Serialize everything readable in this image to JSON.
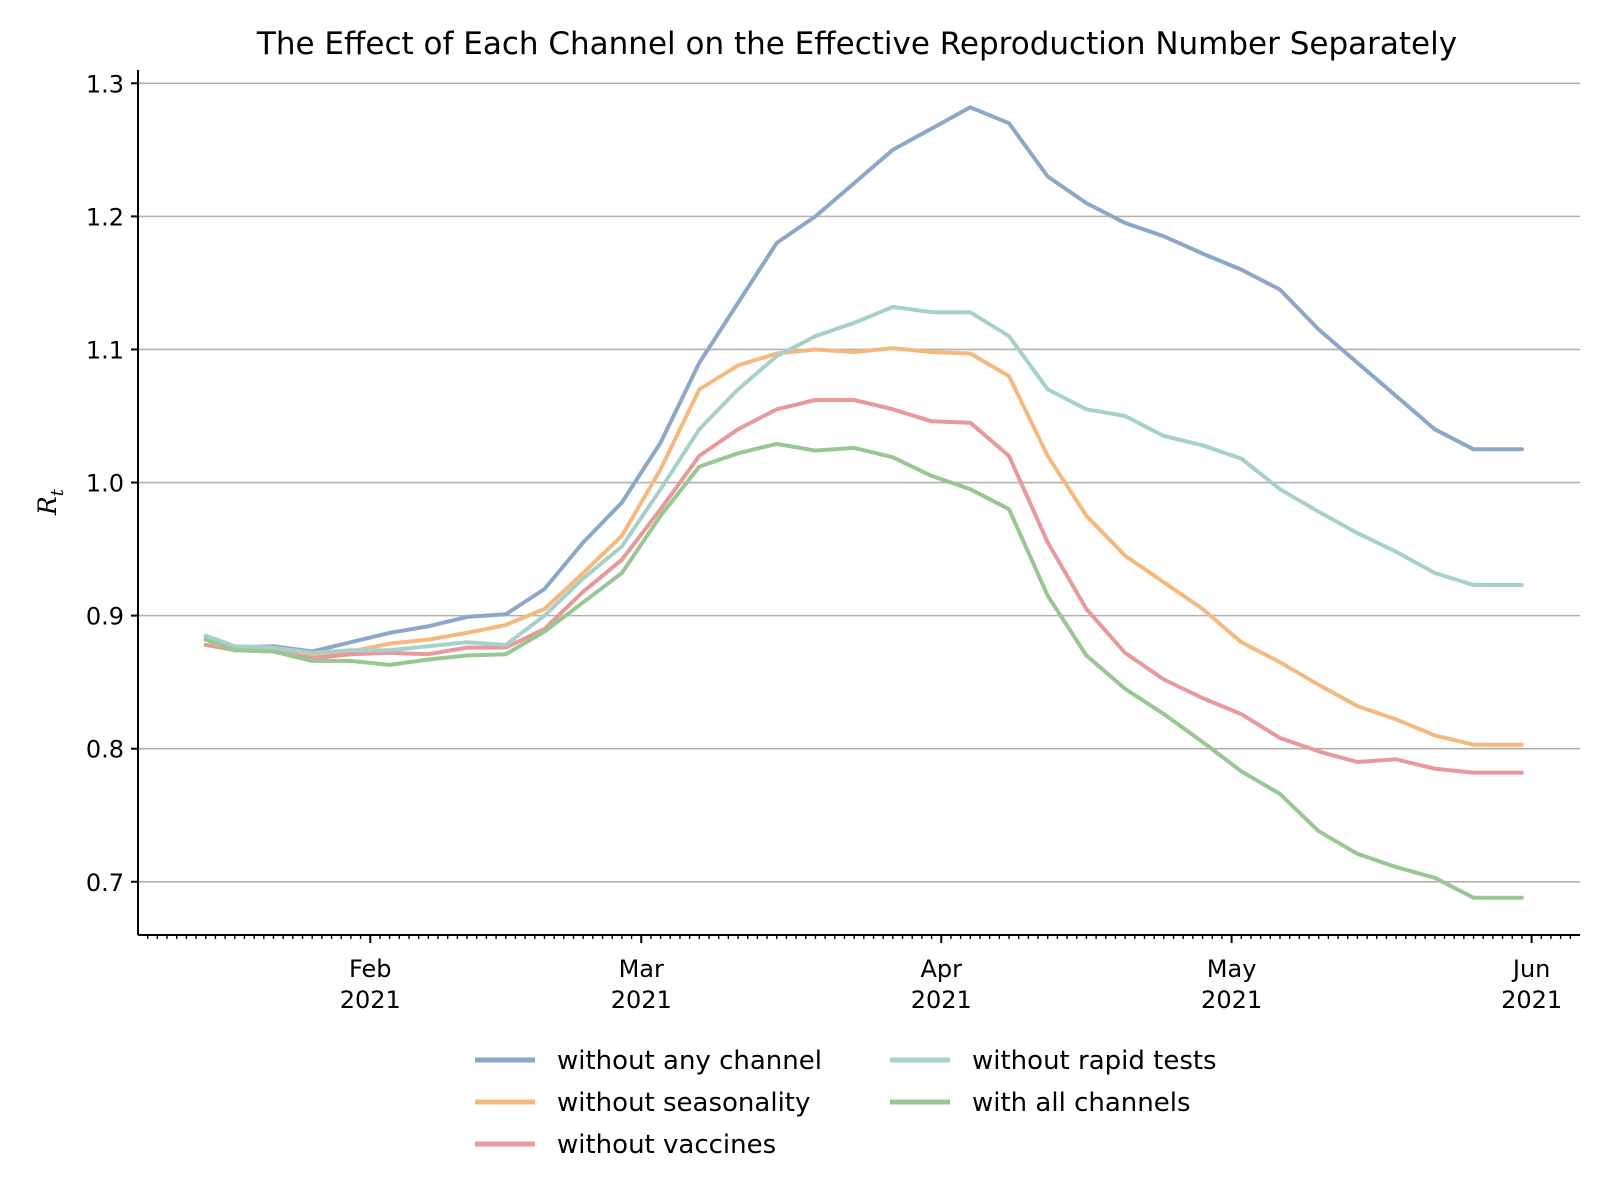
{
  "chart_data": {
    "type": "line",
    "title": "The Effect of Each Channel on the Effective Reproduction Number Separately",
    "ylabel": "R",
    "ylabel_subscript": "t",
    "xlabel": "",
    "ylim": [
      0.66,
      1.31
    ],
    "xlim": [
      "2021-01-08",
      "2021-06-06"
    ],
    "y_ticks": [
      0.7,
      0.8,
      0.9,
      1.0,
      1.1,
      1.2,
      1.3
    ],
    "y_tick_labels": [
      "0.7",
      "0.8",
      "0.9",
      "1.0",
      "1.1",
      "1.2",
      "1.3"
    ],
    "x_ticks": [
      {
        "date": "2021-02-01",
        "month": "Feb",
        "year": "2021"
      },
      {
        "date": "2021-03-01",
        "month": "Mar",
        "year": "2021"
      },
      {
        "date": "2021-04-01",
        "month": "Apr",
        "year": "2021"
      },
      {
        "date": "2021-05-01",
        "month": "May",
        "year": "2021"
      },
      {
        "date": "2021-06-01",
        "month": "Jun",
        "year": "2021"
      }
    ],
    "grid": "horizontal",
    "legend_position": "bottom-center",
    "x": [
      "2021-01-15",
      "2021-01-18",
      "2021-01-22",
      "2021-01-26",
      "2021-01-30",
      "2021-02-03",
      "2021-02-07",
      "2021-02-11",
      "2021-02-15",
      "2021-02-19",
      "2021-02-23",
      "2021-02-27",
      "2021-03-03",
      "2021-03-07",
      "2021-03-11",
      "2021-03-15",
      "2021-03-19",
      "2021-03-23",
      "2021-03-27",
      "2021-03-31",
      "2021-04-04",
      "2021-04-08",
      "2021-04-12",
      "2021-04-16",
      "2021-04-20",
      "2021-04-24",
      "2021-04-28",
      "2021-05-02",
      "2021-05-06",
      "2021-05-10",
      "2021-05-14",
      "2021-05-18",
      "2021-05-22",
      "2021-05-26",
      "2021-05-31"
    ],
    "series": [
      {
        "name": "without any channel",
        "color": "#8da7c8",
        "values": [
          0.884,
          0.876,
          0.877,
          0.873,
          0.88,
          0.887,
          0.892,
          0.899,
          0.901,
          0.92,
          0.955,
          0.985,
          1.03,
          1.09,
          1.135,
          1.18,
          1.2,
          1.225,
          1.25,
          1.266,
          1.282,
          1.27,
          1.23,
          1.21,
          1.195,
          1.185,
          1.172,
          1.16,
          1.145,
          1.115,
          1.09,
          1.065,
          1.04,
          1.025,
          1.025
        ]
      },
      {
        "name": "without seasonality",
        "color": "#f5b97f",
        "values": [
          0.882,
          0.875,
          0.874,
          0.87,
          0.873,
          0.879,
          0.882,
          0.887,
          0.893,
          0.905,
          0.932,
          0.96,
          1.01,
          1.07,
          1.088,
          1.097,
          1.1,
          1.098,
          1.101,
          1.098,
          1.097,
          1.08,
          1.02,
          0.975,
          0.945,
          0.925,
          0.905,
          0.88,
          0.865,
          0.848,
          0.832,
          0.822,
          0.81,
          0.803,
          0.803
        ]
      },
      {
        "name": "without vaccines",
        "color": "#e8999b",
        "values": [
          0.878,
          0.874,
          0.873,
          0.868,
          0.871,
          0.872,
          0.871,
          0.876,
          0.876,
          0.89,
          0.918,
          0.942,
          0.98,
          1.02,
          1.04,
          1.055,
          1.062,
          1.062,
          1.055,
          1.046,
          1.045,
          1.02,
          0.955,
          0.905,
          0.872,
          0.852,
          0.838,
          0.826,
          0.808,
          0.798,
          0.79,
          0.792,
          0.785,
          0.782,
          0.782
        ]
      },
      {
        "name": "without rapid tests",
        "color": "#a8d0ca",
        "values": [
          0.885,
          0.877,
          0.876,
          0.872,
          0.874,
          0.874,
          0.877,
          0.88,
          0.878,
          0.9,
          0.928,
          0.952,
          0.995,
          1.04,
          1.07,
          1.095,
          1.11,
          1.12,
          1.132,
          1.128,
          1.128,
          1.11,
          1.07,
          1.055,
          1.05,
          1.035,
          1.028,
          1.018,
          0.995,
          0.978,
          0.962,
          0.948,
          0.932,
          0.923,
          0.923
        ]
      },
      {
        "name": "with all channels",
        "color": "#99c793",
        "values": [
          0.882,
          0.874,
          0.873,
          0.866,
          0.866,
          0.863,
          0.867,
          0.87,
          0.871,
          0.888,
          0.91,
          0.932,
          0.975,
          1.012,
          1.022,
          1.029,
          1.024,
          1.026,
          1.019,
          1.005,
          0.995,
          0.98,
          0.915,
          0.87,
          0.845,
          0.826,
          0.805,
          0.783,
          0.766,
          0.738,
          0.721,
          0.711,
          0.703,
          0.688,
          0.688
        ]
      }
    ]
  }
}
